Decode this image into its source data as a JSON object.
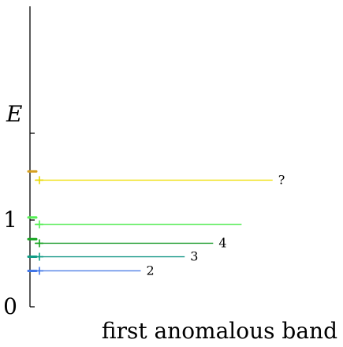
{
  "chart_data": {
    "type": "line",
    "title": "",
    "xlabel": "first anomalous band",
    "ylabel": "E",
    "ylim": [
      0,
      2.6
    ],
    "y_ticks": [
      {
        "value": 0,
        "label": "0"
      },
      {
        "value": 1,
        "label": "1"
      },
      {
        "value": 2,
        "label": ""
      }
    ],
    "series": [
      {
        "label": "2",
        "y": 0.414,
        "x_end": 0.41,
        "color": "#4f7fe6",
        "marker_color": "#3f75e8"
      },
      {
        "label": "3",
        "y": 0.577,
        "x_end": 0.58,
        "color": "#1a9a8a",
        "marker_color": "#0e9c84"
      },
      {
        "label": "4",
        "y": 0.732,
        "x_end": 0.69,
        "color": "#1c9c2c",
        "marker_color": "#14a41e"
      },
      {
        "label": "",
        "y": 0.95,
        "x_end": 0.8,
        "color": "#66ee66",
        "marker_color": "#55f055"
      },
      {
        "label": "?",
        "y": 1.46,
        "x_end": 0.92,
        "color": "#f0e010",
        "marker_color": "#e8d800"
      }
    ],
    "left_dashes": [
      {
        "y": 0.414,
        "color": "#3f75e8"
      },
      {
        "y": 0.577,
        "color": "#0e9c84"
      },
      {
        "y": 0.78,
        "color": "#14a41e"
      },
      {
        "y": 1.03,
        "color": "#55f055"
      },
      {
        "y": 1.56,
        "color": "#d6a020"
      }
    ],
    "grid": false,
    "legend": "none"
  }
}
